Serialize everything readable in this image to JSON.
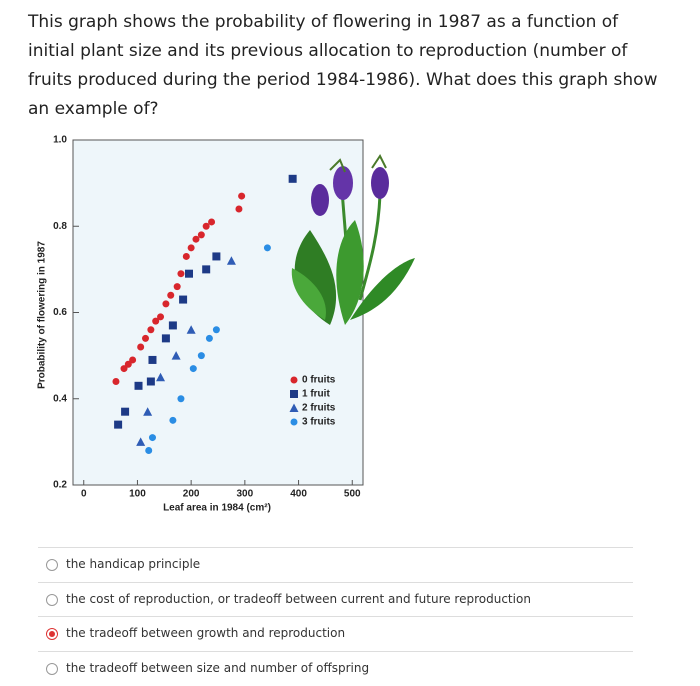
{
  "question": "This graph shows the probability of flowering in 1987 as a function of initial plant size and its previous allocation to reproduction (number of fruits produced during the period 1984-1986). What does this graph show an example of?",
  "chart_data": {
    "type": "scatter",
    "x_label": "Leaf area in 1984 (cm²)",
    "y_label": "Probability of flowering in 1987",
    "xlim": [
      -20,
      520
    ],
    "ylim": [
      0.2,
      1.0
    ],
    "xticks": [
      0,
      100,
      200,
      300,
      400,
      500
    ],
    "yticks": [
      {
        "value": 1,
        "label": "1.0"
      },
      0.8,
      0.6,
      0.4,
      0.2
    ],
    "series": [
      {
        "name": "0 fruits",
        "color": "#d8262c",
        "marker": "circle",
        "x": [
          60,
          75,
          83,
          91,
          106,
          115,
          125,
          134,
          143,
          153,
          162,
          174,
          181,
          191,
          200,
          209,
          219,
          228,
          238,
          289,
          294
        ],
        "values": [
          0.44,
          0.47,
          0.48,
          0.49,
          0.52,
          0.54,
          0.56,
          0.58,
          0.59,
          0.62,
          0.64,
          0.66,
          0.69,
          0.73,
          0.75,
          0.77,
          0.78,
          0.8,
          0.81,
          0.84,
          0.87
        ]
      },
      {
        "name": "1 fruit",
        "color": "#1d3a86",
        "marker": "square",
        "x": [
          64,
          77,
          102,
          125,
          128,
          153,
          166,
          185,
          196,
          228,
          247,
          389
        ],
        "values": [
          0.34,
          0.37,
          0.43,
          0.44,
          0.49,
          0.54,
          0.57,
          0.63,
          0.69,
          0.7,
          0.73,
          0.91
        ]
      },
      {
        "name": "2 fruits",
        "color": "#2f5cb5",
        "marker": "triangle",
        "x": [
          106,
          119,
          143,
          172,
          200,
          275
        ],
        "values": [
          0.3,
          0.37,
          0.45,
          0.5,
          0.56,
          0.72
        ]
      },
      {
        "name": "3 fruits",
        "color": "#2a8de4",
        "marker": "circle",
        "x": [
          121,
          128,
          166,
          181,
          204,
          219,
          234,
          247,
          342
        ],
        "values": [
          0.28,
          0.31,
          0.35,
          0.4,
          0.47,
          0.5,
          0.54,
          0.56,
          0.75
        ]
      }
    ]
  },
  "options": [
    "the handicap principle",
    "the cost of reproduction, or tradeoff between current and future reproduction",
    "the tradeoff between growth and reproduction",
    "the tradeoff between size and number of offspring"
  ],
  "selected": 2
}
